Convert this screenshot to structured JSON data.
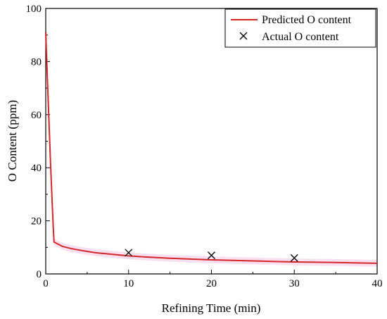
{
  "chart_data": {
    "type": "line",
    "title": "",
    "xlabel": "Refining Time (min)",
    "ylabel": "O Content (ppm)",
    "xlim": [
      0,
      40
    ],
    "ylim": [
      0,
      100
    ],
    "xticks": [
      0,
      10,
      20,
      30,
      40
    ],
    "yticks": [
      0,
      20,
      40,
      60,
      80,
      100
    ],
    "xtick_labels": [
      "0",
      "10",
      "20",
      "30",
      "40"
    ],
    "ytick_labels": [
      "0",
      "20",
      "40",
      "60",
      "80",
      "100"
    ],
    "grid": false,
    "legend_position": "top-right",
    "series": [
      {
        "name": "Predicted O content",
        "kind": "line",
        "color": "#d62728",
        "x": [
          0,
          0.3,
          0.6,
          0.9,
          1,
          2,
          3,
          4,
          5,
          6,
          8,
          10,
          12,
          15,
          20,
          25,
          30,
          35,
          40
        ],
        "y": [
          91,
          65,
          40,
          18,
          12,
          10.4,
          9.6,
          9.0,
          8.5,
          8.0,
          7.4,
          6.8,
          6.4,
          5.9,
          5.3,
          4.9,
          4.5,
          4.3,
          4.0
        ]
      },
      {
        "name": "Actual O content",
        "kind": "scatter",
        "marker": "x",
        "color": "#000000",
        "x": [
          10,
          20,
          30
        ],
        "y": [
          8,
          7,
          6
        ]
      }
    ]
  }
}
